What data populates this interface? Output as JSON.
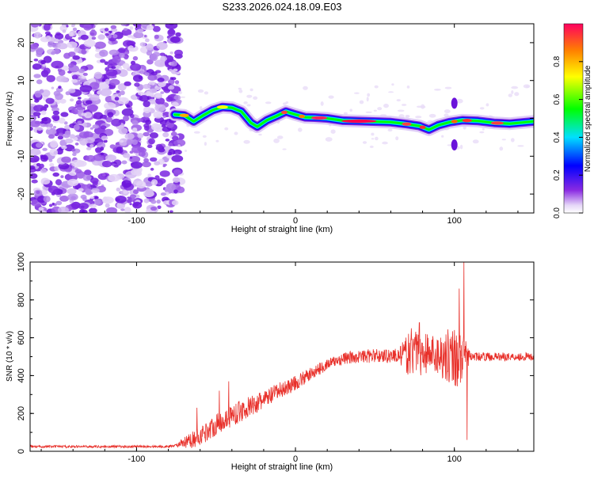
{
  "title": "S233.2026.024.18.09.E03",
  "colors": {
    "snr_line": "#e8302a",
    "axis": "#000000",
    "background": "#ffffff"
  },
  "chart_data": [
    {
      "type": "heatmap",
      "xlabel": "Height of straight line (km)",
      "ylabel": "Frequency (Hz)",
      "xlim": [
        -167,
        150
      ],
      "ylim": [
        -25,
        25
      ],
      "xticks": [
        -100,
        0,
        100
      ],
      "yticks": [
        -20,
        -10,
        0,
        10,
        20
      ],
      "noise_region": [
        -167,
        -75
      ],
      "ridge": [
        [
          -76,
          1.0
        ],
        [
          -70,
          0.8
        ],
        [
          -64,
          -0.8
        ],
        [
          -58,
          0.8
        ],
        [
          -52,
          2.2
        ],
        [
          -46,
          3.0
        ],
        [
          -40,
          2.8
        ],
        [
          -34,
          1.8
        ],
        [
          -28,
          -1.2
        ],
        [
          -24,
          -2.2
        ],
        [
          -18,
          -0.5
        ],
        [
          -12,
          0.6
        ],
        [
          -6,
          1.8
        ],
        [
          0,
          1.0
        ],
        [
          6,
          0.3
        ],
        [
          12,
          0.2
        ],
        [
          20,
          0.0
        ],
        [
          30,
          -0.6
        ],
        [
          45,
          -0.8
        ],
        [
          60,
          -1.0
        ],
        [
          70,
          -1.5
        ],
        [
          78,
          -2.0
        ],
        [
          84,
          -3.0
        ],
        [
          90,
          -1.8
        ],
        [
          97,
          -1.0
        ],
        [
          105,
          -0.5
        ],
        [
          115,
          -0.7
        ],
        [
          125,
          -1.2
        ],
        [
          135,
          -1.4
        ],
        [
          150,
          -0.8
        ]
      ],
      "colorbar": {
        "label": "Normalized spectral amplitude",
        "range": [
          0.0,
          1.0
        ],
        "ticks": [
          "0.0",
          "0.2",
          "0.4",
          "0.6",
          "0.8"
        ]
      }
    },
    {
      "type": "line",
      "xlabel": "Height of straight line (km)",
      "ylabel": "SNR (10 * v/v)",
      "xlim": [
        -167,
        150
      ],
      "ylim": [
        0,
        1000
      ],
      "xticks": [
        -100,
        0,
        100
      ],
      "yticks": [
        0,
        200,
        400,
        600,
        800,
        1000
      ],
      "envelope": [
        [
          -167,
          25
        ],
        [
          -100,
          25
        ],
        [
          -80,
          25
        ],
        [
          -70,
          40
        ],
        [
          -60,
          80
        ],
        [
          -50,
          140
        ],
        [
          -40,
          190
        ],
        [
          -30,
          230
        ],
        [
          -20,
          270
        ],
        [
          -10,
          320
        ],
        [
          0,
          360
        ],
        [
          10,
          410
        ],
        [
          20,
          460
        ],
        [
          30,
          490
        ],
        [
          40,
          500
        ],
        [
          50,
          505
        ],
        [
          60,
          505
        ],
        [
          70,
          510
        ],
        [
          75,
          520
        ],
        [
          90,
          510
        ],
        [
          100,
          505
        ],
        [
          105,
          500
        ],
        [
          110,
          500
        ],
        [
          150,
          500
        ]
      ],
      "noise_levels": [
        [
          -167,
          6
        ],
        [
          -75,
          6
        ],
        [
          -70,
          35
        ],
        [
          -60,
          50
        ],
        [
          -40,
          60
        ],
        [
          -20,
          50
        ],
        [
          20,
          30
        ],
        [
          65,
          40
        ],
        [
          72,
          120
        ],
        [
          90,
          110
        ],
        [
          103,
          180
        ],
        [
          110,
          22
        ],
        [
          150,
          22
        ]
      ],
      "spikes": [
        [
          -62,
          230
        ],
        [
          -48,
          320
        ],
        [
          -42,
          370
        ],
        [
          -38,
          160
        ],
        [
          -23,
          250
        ],
        [
          -13,
          300
        ],
        [
          73,
          650
        ],
        [
          78,
          680
        ],
        [
          82,
          620
        ],
        [
          103,
          860
        ],
        [
          106,
          1000
        ],
        [
          108,
          60
        ]
      ]
    }
  ]
}
